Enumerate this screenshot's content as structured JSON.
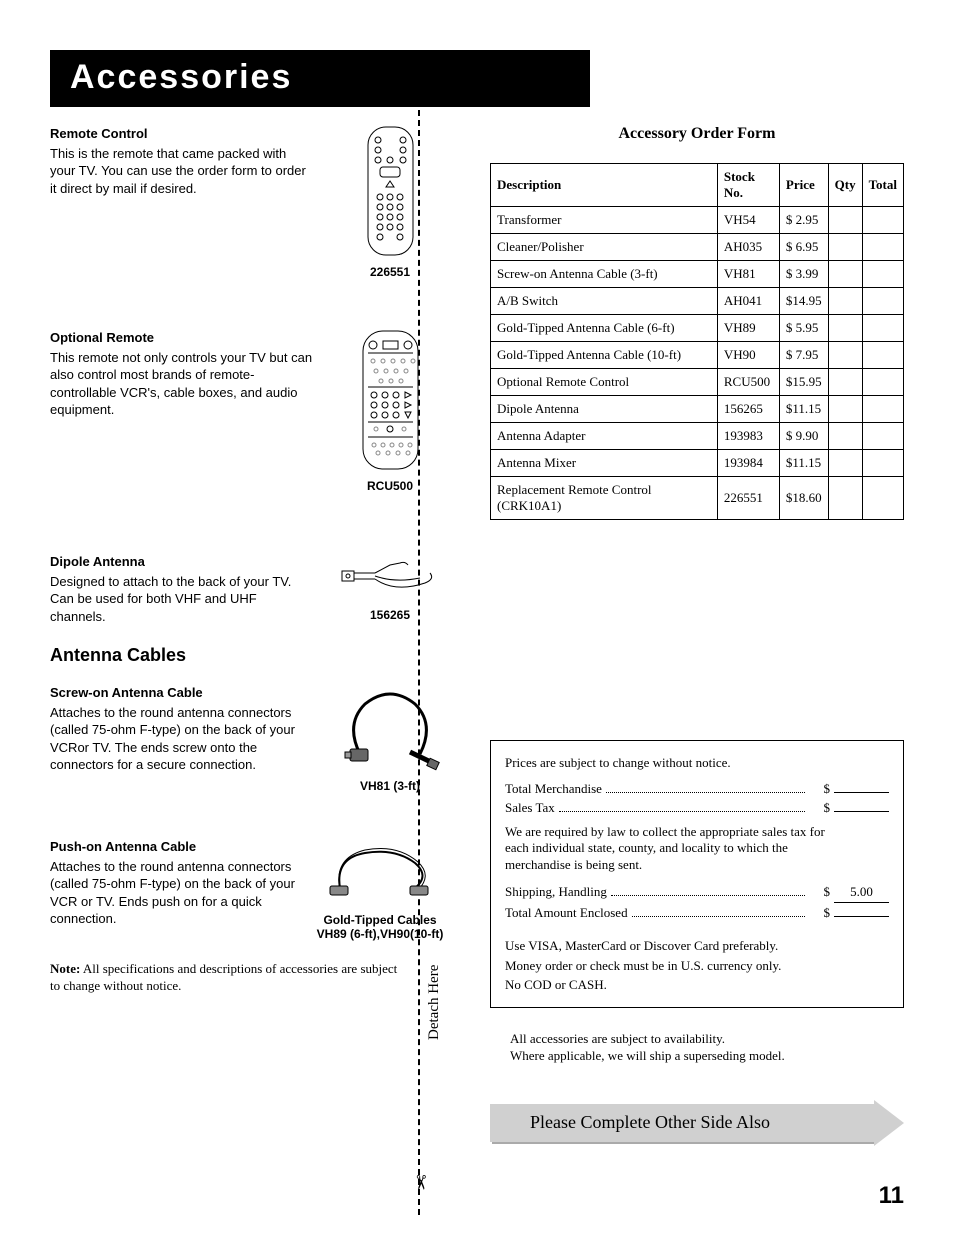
{
  "title": "Accessories",
  "accessories": [
    {
      "heading": "Remote Control",
      "desc": "This is the remote that came packed with your TV.  You can use the order form to order it direct by mail if desired.",
      "caption": "226551"
    },
    {
      "heading": "Optional Remote",
      "desc": "This remote not only controls your TV but can also control most brands of remote-controllable VCR's, cable boxes, and audio equipment.",
      "caption": "RCU500"
    },
    {
      "heading": "Dipole Antenna",
      "desc": "Designed to attach to the back of your TV.  Can be used for both VHF and UHF channels.",
      "caption": "156265"
    }
  ],
  "section2": "Antenna Cables",
  "cables": [
    {
      "heading": "Screw-on Antenna Cable",
      "desc": "Attaches to the round antenna connectors (called 75-ohm F-type) on the back of your VCRor TV.  The ends screw onto the connectors for a secure connection.",
      "caption": "VH81  (3-ft)"
    },
    {
      "heading": "Push-on Antenna Cable",
      "desc": "Attaches to the round antenna connectors (called 75-ohm F-type) on the back of your VCR or TV.  Ends push on for a quick connection.",
      "caption1": "Gold-Tipped Cables",
      "caption2": "VH89 (6-ft),VH90(10-ft)"
    }
  ],
  "left_note_bold": "Note:",
  "left_note": "  All specifications and descriptions of accessories are subject to change without notice.",
  "order_heading": "Accessory Order Form",
  "table": {
    "cols": [
      "Description",
      "Stock No.",
      "Price",
      "Qty",
      "Total"
    ],
    "rows": [
      [
        "Transformer",
        "VH54",
        "$  2.95",
        "",
        ""
      ],
      [
        "Cleaner/Polisher",
        "AH035",
        "$  6.95",
        "",
        ""
      ],
      [
        "Screw-on Antenna Cable (3-ft)",
        "VH81",
        "$  3.99",
        "",
        ""
      ],
      [
        "A/B Switch",
        "AH041",
        "$14.95",
        "",
        ""
      ],
      [
        "Gold-Tipped Antenna Cable (6-ft)",
        "VH89",
        "$  5.95",
        "",
        ""
      ],
      [
        "Gold-Tipped Antenna Cable (10-ft)",
        "VH90",
        "$  7.95",
        "",
        ""
      ],
      [
        "Optional Remote Control",
        "RCU500",
        "$15.95",
        "",
        ""
      ],
      [
        "Dipole Antenna",
        "156265",
        "$11.15",
        "",
        ""
      ],
      [
        "Antenna Adapter",
        "193983",
        "$  9.90",
        "",
        ""
      ],
      [
        "Antenna Mixer",
        "193984",
        "$11.15",
        "",
        ""
      ],
      [
        "Replacement Remote Control (CRK10A1)",
        "226551",
        "$18.60",
        "",
        ""
      ]
    ]
  },
  "totals": {
    "notice": "Prices are subject to change without notice.",
    "merch": "Total Merchandise",
    "tax": "Sales Tax",
    "tax_note": "We are required by law to collect the appropriate sales tax for each individual state, county, and locality to which the merchandise is being sent.",
    "ship": "Shipping, Handling",
    "ship_amt": "5.00",
    "enclosed": "Total Amount Enclosed",
    "cc": "Use VISA, MasterCard or Discover Card preferably.",
    "mo": "Money order or check must be in U.S. currency only.",
    "cod": "No COD or CASH."
  },
  "avail1": "All accessories are subject to availability.",
  "avail2": "Where applicable, we will ship a superseding model.",
  "banner": "Please Complete Other Side Also",
  "detach": "Detach Here",
  "scissors": "✂",
  "page": "11"
}
